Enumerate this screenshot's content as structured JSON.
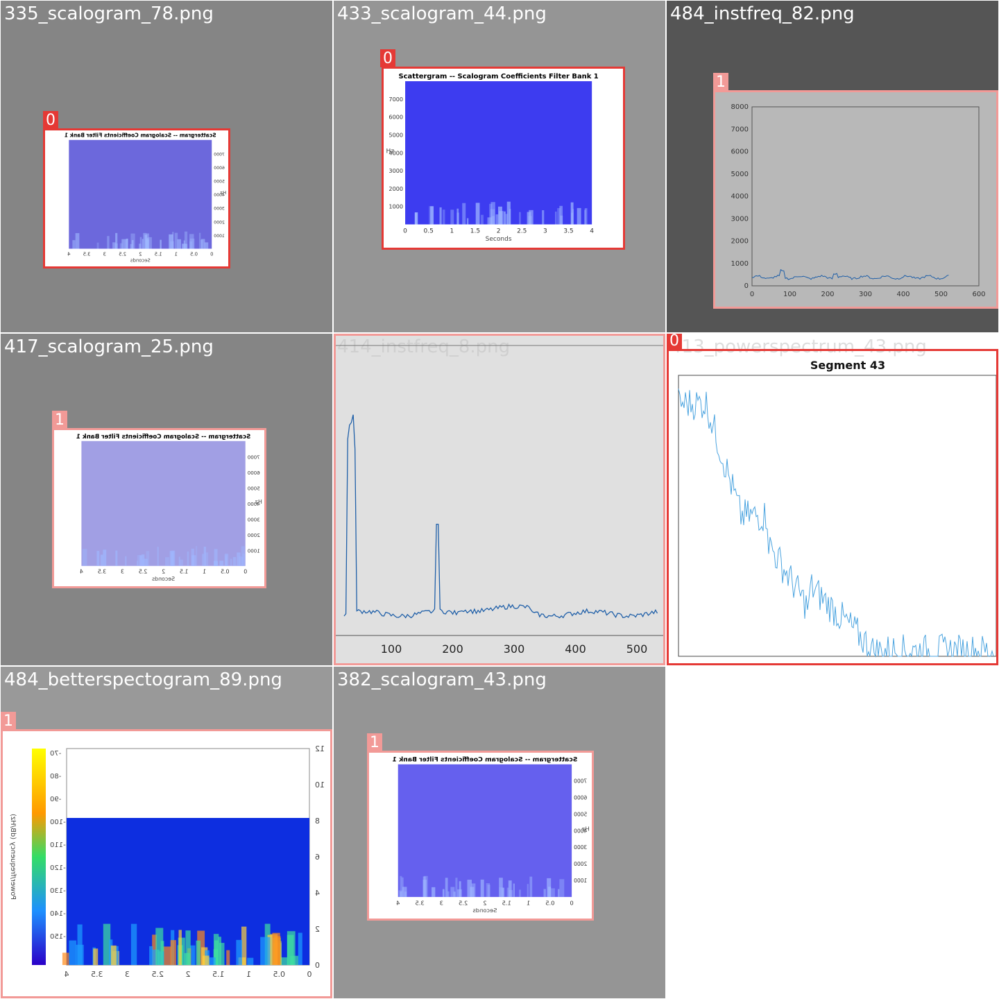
{
  "colors": {
    "box_class0": "#e53935",
    "box_class1": "#f29a97",
    "scalogram_blue": "#5a57e8",
    "line_blue": "#1f6fbf"
  },
  "tiles": [
    {
      "filename": "335_scalogram_78.png",
      "background": "#858585",
      "class_label": "0",
      "figure": {
        "title": "Scattergram -- Scalogram Coefficients Filter Bank 1",
        "xlabel": "Seconds",
        "ylabel": "Hz",
        "xticks": [
          "0",
          "0.5",
          "1",
          "1.5",
          "2",
          "2.5",
          "3",
          "3.5",
          "4"
        ],
        "yticks": [
          "1000",
          "2000",
          "3000",
          "4000",
          "5000",
          "6000",
          "7000"
        ],
        "mirrored": true
      }
    },
    {
      "filename": "433_scalogram_44.png",
      "background": "#959595",
      "class_label": "0",
      "figure": {
        "title": "Scattergram -- Scalogram Coefficients Filter Bank 1",
        "xlabel": "Seconds",
        "ylabel": "Hz",
        "xticks": [
          "0",
          "0.5",
          "1",
          "1.5",
          "2",
          "2.5",
          "3",
          "3.5",
          "4"
        ],
        "yticks": [
          "1000",
          "2000",
          "3000",
          "4000",
          "5000",
          "6000",
          "7000"
        ],
        "mirrored": false
      }
    },
    {
      "filename": "484_instfreq_82.png",
      "background": "#555555",
      "class_label": "1",
      "figure": {
        "xticks": [
          "0",
          "100",
          "200",
          "300",
          "400",
          "500",
          "600"
        ],
        "yticks": [
          "0",
          "1000",
          "2000",
          "3000",
          "4000",
          "5000",
          "6000",
          "7000",
          "8000"
        ]
      }
    },
    {
      "filename": "417_scalogram_25.png",
      "background": "#858585",
      "class_label": "1",
      "figure": {
        "title": "Scattergram -- Scalogram Coefficients Filter Bank 1",
        "xlabel": "Seconds",
        "ylabel": "Hz",
        "xticks": [
          "0",
          "0.5",
          "1",
          "1.5",
          "2",
          "2.5",
          "3",
          "3.5",
          "4"
        ],
        "yticks": [
          "1000",
          "2000",
          "3000",
          "4000",
          "5000",
          "6000",
          "7000"
        ],
        "mirrored": true
      }
    },
    {
      "filename": "414_instfreq_8.png",
      "background": "#e0e0e0",
      "class_label": "1",
      "figure": {
        "xticks": [
          "100",
          "200",
          "300",
          "400",
          "500"
        ]
      }
    },
    {
      "filename": "413_powerspectrum_43.png",
      "background": "#ffffff",
      "class_label": "0",
      "figure": {
        "title": "Segment 43"
      }
    },
    {
      "filename": "484_betterspectogram_89.png",
      "background": "#999999",
      "class_label": "1",
      "figure": {
        "colorbar_label": "Power/frequency (dB/Hz)",
        "colorbar_ticks": [
          "-70",
          "-80",
          "-90",
          "-100",
          "-110",
          "-120",
          "-130",
          "-140",
          "-150"
        ],
        "xticks": [
          "0",
          "0.5",
          "1",
          "1.5",
          "2",
          "2.5",
          "3",
          "3.5",
          "4"
        ],
        "yticks": [
          "0",
          "2",
          "4",
          "6",
          "8",
          "10",
          "12"
        ],
        "mirrored": true
      }
    },
    {
      "filename": "382_scalogram_43.png",
      "background": "#959595",
      "class_label": "1",
      "figure": {
        "title": "Scattergram -- Scalogram Coefficients Filter Bank 1",
        "xlabel": "Seconds",
        "ylabel": "Hz",
        "xticks": [
          "0",
          "0.5",
          "1",
          "1.5",
          "2",
          "2.5",
          "3",
          "3.5",
          "4"
        ],
        "yticks": [
          "1000",
          "2000",
          "3000",
          "4000",
          "5000",
          "6000",
          "7000"
        ],
        "mirrored": true
      }
    }
  ]
}
